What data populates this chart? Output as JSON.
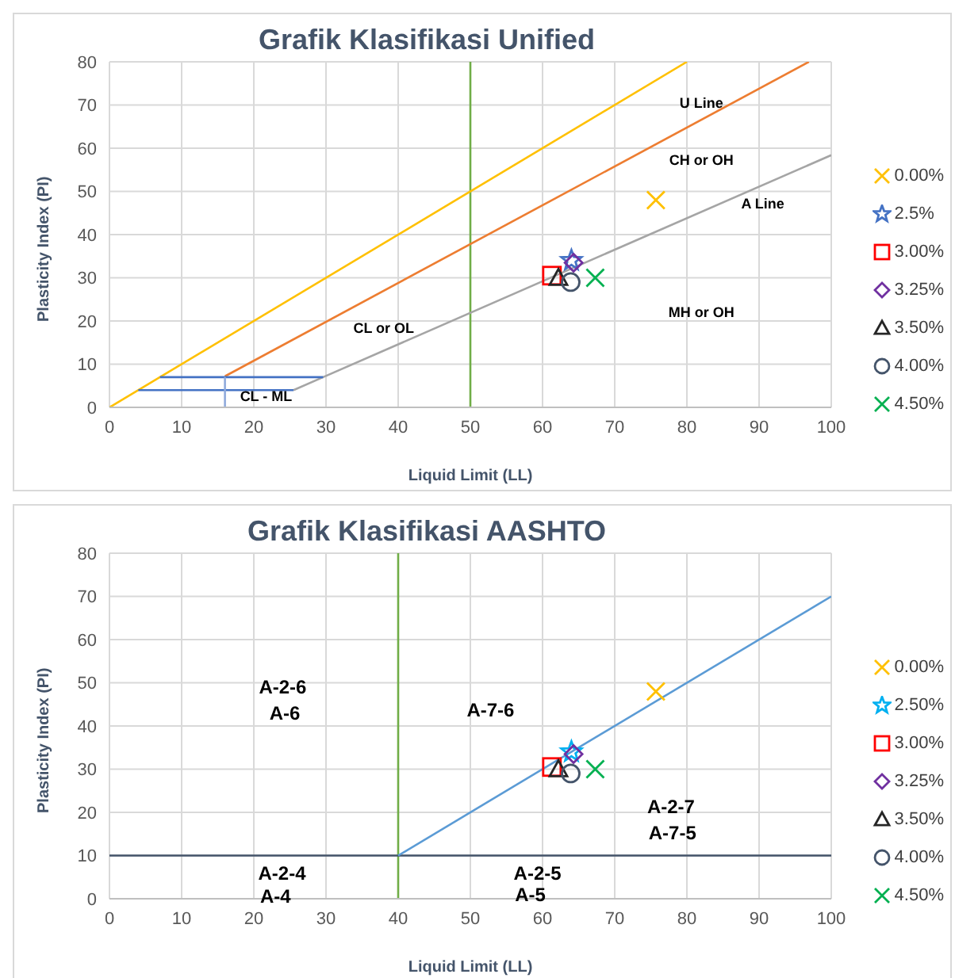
{
  "chart_data": [
    {
      "type": "scatter",
      "title": "Grafik Klasifikasi Unified",
      "xlabel": "Liquid Limit (LL)",
      "ylabel": "Plasticity Index (PI)",
      "xlim": [
        0,
        100
      ],
      "xticks": [
        0,
        10,
        20,
        30,
        40,
        50,
        60,
        70,
        80,
        90,
        100
      ],
      "ylim": [
        0,
        80
      ],
      "yticks": [
        0,
        10,
        20,
        30,
        40,
        50,
        60,
        70,
        80
      ],
      "grid": true,
      "legend": "right",
      "series": [
        {
          "type": "line",
          "x": [
            0,
            80
          ],
          "values": [
            0,
            80
          ],
          "color": "#ffc000",
          "marker": "none"
        },
        {
          "type": "line",
          "x": [
            16,
            96.9
          ],
          "values": [
            7.2,
            80
          ],
          "color": "#ed7d31",
          "marker": "none"
        },
        {
          "type": "line",
          "x": [
            25.5,
            29.6,
            100
          ],
          "values": [
            4,
            7,
            58.4
          ],
          "color": "#a5a5a5",
          "marker": "none"
        },
        {
          "type": "line",
          "x": [
            7,
            29.6
          ],
          "values": [
            7,
            7
          ],
          "color": "#4472c4",
          "marker": "none"
        },
        {
          "type": "line",
          "x": [
            4,
            25.5
          ],
          "values": [
            4,
            4
          ],
          "color": "#4472c4",
          "marker": "none"
        },
        {
          "type": "line",
          "x": [
            16,
            16
          ],
          "values": [
            0,
            7
          ],
          "color": "#8faadc",
          "marker": "none"
        },
        {
          "type": "scatter",
          "name": "0.00%",
          "x": [
            75.7
          ],
          "values": [
            48
          ],
          "color": "#ffc000",
          "marker": "cross"
        },
        {
          "type": "scatter",
          "name": "2.5%",
          "x": [
            64
          ],
          "values": [
            34
          ],
          "color": "#4472c4",
          "marker": "star"
        },
        {
          "type": "scatter",
          "name": "3.00%",
          "x": [
            61.3
          ],
          "values": [
            30.5
          ],
          "color": "#ff0000",
          "marker": "square"
        },
        {
          "type": "scatter",
          "name": "3.25%",
          "x": [
            64.3
          ],
          "values": [
            33.5
          ],
          "color": "#7030a0",
          "marker": "diamond"
        },
        {
          "type": "scatter",
          "name": "3.50%",
          "x": [
            62.2
          ],
          "values": [
            30
          ],
          "color": "#262626",
          "marker": "triangle"
        },
        {
          "type": "scatter",
          "name": "4.00%",
          "x": [
            63.9
          ],
          "values": [
            29
          ],
          "color": "#44546a",
          "marker": "circle"
        },
        {
          "type": "scatter",
          "name": "4.50%",
          "x": [
            67.3
          ],
          "values": [
            30
          ],
          "color": "#00b050",
          "marker": "cross"
        }
      ],
      "ref_lines": [
        {
          "axis": "x",
          "value": 50,
          "color": "#70ad47"
        }
      ],
      "annotations": [
        "U Line",
        "CH or OH",
        "A Line",
        "CL or OL",
        "MH or OH",
        "CL - ML"
      ]
    },
    {
      "type": "scatter",
      "title": "Grafik Klasifikasi AASHTO",
      "xlabel": "Liquid Limit (LL)",
      "ylabel": "Plasticity Index (PI)",
      "xlim": [
        0,
        100
      ],
      "xticks": [
        0,
        10,
        20,
        30,
        40,
        50,
        60,
        70,
        80,
        90,
        100
      ],
      "ylim": [
        0,
        80
      ],
      "yticks": [
        0,
        10,
        20,
        30,
        40,
        50,
        60,
        70,
        80
      ],
      "grid": true,
      "legend": "right",
      "series": [
        {
          "type": "line",
          "x": [
            40,
            100
          ],
          "values": [
            10,
            70
          ],
          "color": "#5b9bd5",
          "marker": "none"
        },
        {
          "type": "scatter",
          "name": "0.00%",
          "x": [
            75.7
          ],
          "values": [
            48
          ],
          "color": "#ffc000",
          "marker": "cross"
        },
        {
          "type": "scatter",
          "name": "2.50%",
          "x": [
            64
          ],
          "values": [
            34
          ],
          "color": "#00b0f0",
          "marker": "star"
        },
        {
          "type": "scatter",
          "name": "3.00%",
          "x": [
            61.3
          ],
          "values": [
            30.5
          ],
          "color": "#ff0000",
          "marker": "square"
        },
        {
          "type": "scatter",
          "name": "3.25%",
          "x": [
            64.3
          ],
          "values": [
            33.5
          ],
          "color": "#7030a0",
          "marker": "diamond"
        },
        {
          "type": "scatter",
          "name": "3.50%",
          "x": [
            62.2
          ],
          "values": [
            30
          ],
          "color": "#262626",
          "marker": "triangle"
        },
        {
          "type": "scatter",
          "name": "4.00%",
          "x": [
            63.9
          ],
          "values": [
            29
          ],
          "color": "#44546a",
          "marker": "circle"
        },
        {
          "type": "scatter",
          "name": "4.50%",
          "x": [
            67.3
          ],
          "values": [
            30
          ],
          "color": "#00b050",
          "marker": "cross"
        }
      ],
      "ref_lines": [
        {
          "axis": "x",
          "value": 40,
          "color": "#70ad47"
        },
        {
          "axis": "y",
          "value": 10,
          "color": "#44546a"
        }
      ],
      "annotations": [
        "A-2-6",
        "A-6",
        "A-7-6",
        "A-2-7",
        "A-7-5",
        "A-2-4",
        "A-4",
        "A-2-5",
        "A-5"
      ]
    }
  ]
}
